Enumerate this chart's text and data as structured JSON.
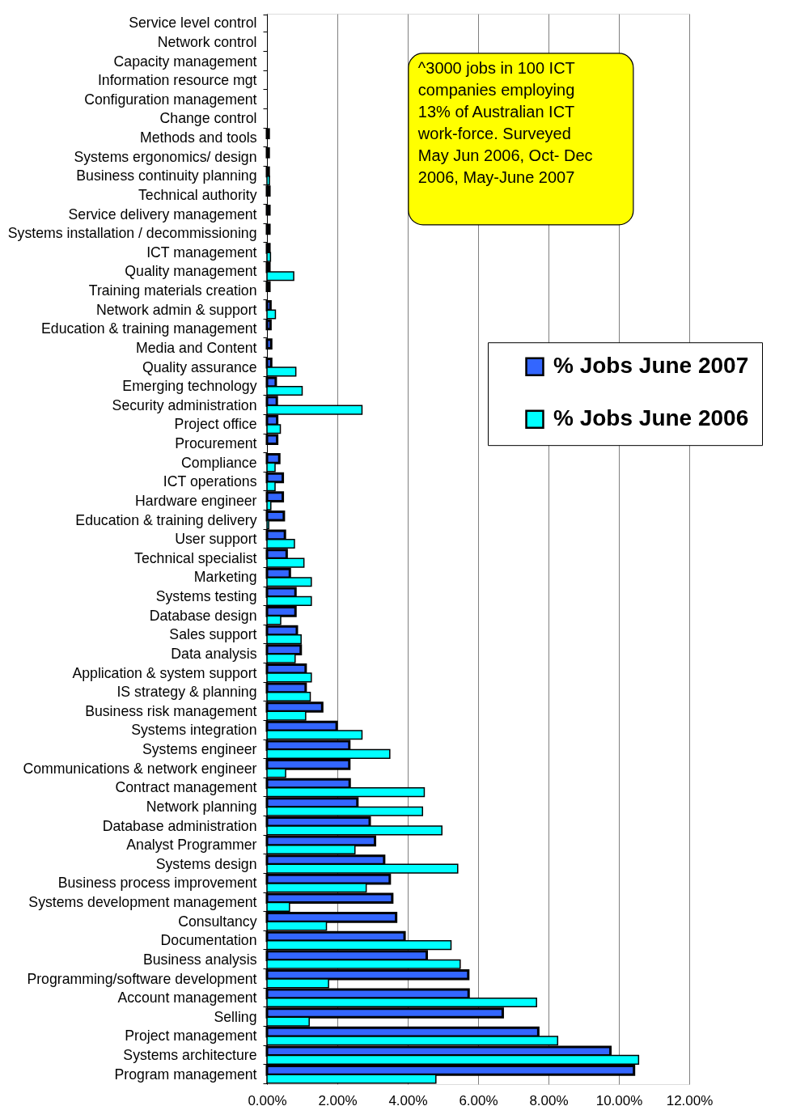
{
  "chart_data": {
    "type": "bar",
    "orientation": "horizontal",
    "categories": [
      "Service level control",
      "Network control",
      "Capacity management",
      "Information resource mgt",
      "Configuration management",
      "Change control",
      "Methods and tools",
      "Systems ergonomics/ design",
      "Business continuity planning",
      "Technical authority",
      "Service delivery management",
      "Systems installation / decommissioning",
      "ICT management",
      "Quality management",
      "Training materials creation",
      "Network admin & support",
      "Education & training management",
      "Media and Content",
      "Quality assurance",
      "Emerging technology",
      "Security administration",
      "Project office",
      "Procurement",
      "Compliance",
      "ICT operations",
      "Hardware engineer",
      "Education & training delivery",
      "User support",
      "Technical specialist",
      "Marketing",
      "Systems testing",
      "Database design",
      "Sales support",
      "Data analysis",
      "Application & system support",
      "IS strategy & planning",
      "Business risk management",
      "Systems integration",
      "Systems engineer",
      "Communications & network engineer",
      "Contract management",
      "Network planning",
      "Database administration",
      "Analyst Programmer",
      "Systems design",
      "Business process improvement",
      "Systems development management",
      "Consultancy",
      "Documentation",
      "Business analysis",
      "Programming/software development",
      "Account management",
      "Selling",
      "Project management",
      "Systems architecture",
      "Program management"
    ],
    "series": [
      {
        "name": "% Jobs June 2007",
        "color": "#3366ff",
        "values": [
          0,
          0,
          0,
          0,
          0,
          0,
          0.05,
          0.05,
          0.05,
          0.07,
          0.07,
          0.07,
          0.07,
          0.07,
          0.07,
          0.1,
          0.1,
          0.12,
          0.12,
          0.25,
          0.28,
          0.29,
          0.29,
          0.35,
          0.45,
          0.45,
          0.48,
          0.51,
          0.56,
          0.65,
          0.81,
          0.81,
          0.85,
          0.96,
          1.1,
          1.1,
          1.57,
          1.98,
          2.34,
          2.34,
          2.35,
          2.57,
          2.92,
          3.07,
          3.33,
          3.49,
          3.56,
          3.67,
          3.91,
          4.54,
          5.72,
          5.73,
          6.7,
          7.71,
          9.76,
          10.43
        ]
      },
      {
        "name": "% Jobs June 2006",
        "color": "#00ffff",
        "values": [
          0,
          0,
          0,
          0,
          0,
          0,
          0,
          0,
          0.07,
          0,
          0,
          0,
          0.1,
          0.76,
          0,
          0.24,
          0,
          0,
          0.82,
          1.0,
          2.7,
          0.38,
          0,
          0.23,
          0.23,
          0.11,
          0.05,
          0.78,
          1.05,
          1.26,
          1.26,
          0.39,
          0.97,
          0.8,
          1.26,
          1.23,
          1.1,
          2.7,
          3.49,
          0.53,
          4.47,
          4.42,
          4.97,
          2.5,
          5.42,
          2.82,
          0.64,
          1.69,
          5.23,
          5.49,
          1.75,
          7.66,
          1.2,
          8.26,
          10.56,
          4.8
        ]
      }
    ],
    "xlim": [
      0,
      12
    ],
    "xticks": [
      {
        "value": 0,
        "label": "0.00%"
      },
      {
        "value": 2,
        "label": "2.00%"
      },
      {
        "value": 4,
        "label": "4.00%"
      },
      {
        "value": 6,
        "label": "6.00%"
      },
      {
        "value": 8,
        "label": "8.00%"
      },
      {
        "value": 10,
        "label": "10.00%"
      },
      {
        "value": 12,
        "label": "12.00%"
      }
    ],
    "grid": "x",
    "legend": "right",
    "annotations": [
      "^3000 jobs in 100 ICT companies employing 13% of Australian ICT work-force. Surveyed May Jun 2006, Oct- Dec 2006, May-June 2007"
    ]
  }
}
